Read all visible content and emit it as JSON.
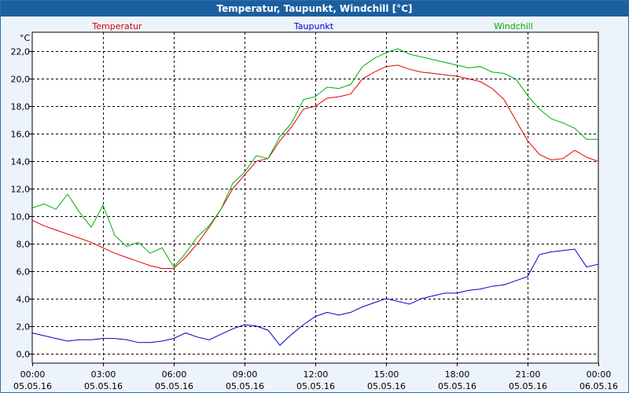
{
  "window": {
    "title": "Temperatur, Taupunkt, Windchill [°C]"
  },
  "colors": {
    "titlebar_bg": "#1b5f9f",
    "background": "#ecf3fb",
    "plot_bg": "#ffffff",
    "grid": "#000000"
  },
  "chart_data": {
    "type": "line",
    "title": "Temperatur, Taupunkt, Windchill [°C]",
    "ylabel": "°C",
    "xlabel": "",
    "ylim": [
      -0.7,
      23.4
    ],
    "yticks": [
      0,
      2,
      4,
      6,
      8,
      10,
      12,
      14,
      16,
      18,
      20,
      22
    ],
    "ytick_labels": [
      "0,0",
      "2,0",
      "4,0",
      "6,0",
      "8,0",
      "10,0",
      "12,0",
      "14,0",
      "16,0",
      "18,0",
      "20,0",
      "22,0"
    ],
    "xlim": [
      "05.05.16 00:00",
      "06.05.16 00:00"
    ],
    "xticks": [
      {
        "time": "00:00",
        "date": "05.05.16"
      },
      {
        "time": "03:00",
        "date": "05.05.16"
      },
      {
        "time": "06:00",
        "date": "05.05.16"
      },
      {
        "time": "09:00",
        "date": "05.05.16"
      },
      {
        "time": "12:00",
        "date": "05.05.16"
      },
      {
        "time": "15:00",
        "date": "05.05.16"
      },
      {
        "time": "18:00",
        "date": "05.05.16"
      },
      {
        "time": "21:00",
        "date": "05.05.16"
      },
      {
        "time": "00:00",
        "date": "06.05.16"
      }
    ],
    "grid": true,
    "legend_position": "top",
    "series": [
      {
        "name": "Temperatur",
        "color": "#e00000",
        "x": [
          "00:00",
          "00:30",
          "01:00",
          "01:30",
          "02:00",
          "02:30",
          "03:00",
          "03:30",
          "04:00",
          "04:30",
          "05:00",
          "05:30",
          "06:00",
          "06:30",
          "07:00",
          "07:30",
          "08:00",
          "08:30",
          "09:00",
          "09:30",
          "10:00",
          "10:30",
          "11:00",
          "11:30",
          "12:00",
          "12:30",
          "13:00",
          "13:30",
          "14:00",
          "14:30",
          "15:00",
          "15:30",
          "16:00",
          "16:30",
          "17:00",
          "17:30",
          "18:00",
          "18:30",
          "19:00",
          "19:30",
          "20:00",
          "20:30",
          "21:00",
          "21:30",
          "22:00",
          "22:30",
          "23:00",
          "23:30",
          "23:59"
        ],
        "values": [
          9.7,
          9.3,
          9.0,
          8.7,
          8.4,
          8.1,
          7.7,
          7.3,
          7.0,
          6.7,
          6.4,
          6.2,
          6.2,
          7.0,
          8.0,
          9.2,
          10.5,
          12.0,
          13.0,
          14.0,
          14.2,
          15.5,
          16.5,
          17.8,
          18.0,
          18.6,
          18.7,
          18.9,
          20.0,
          20.5,
          20.9,
          21.0,
          20.7,
          20.5,
          20.4,
          20.3,
          20.2,
          20.0,
          19.8,
          19.3,
          18.5,
          17.0,
          15.5,
          14.5,
          14.1,
          14.2,
          14.8,
          14.3,
          14.0
        ]
      },
      {
        "name": "Taupunkt",
        "color": "#0000cc",
        "x": [
          "00:00",
          "00:30",
          "01:00",
          "01:30",
          "02:00",
          "02:30",
          "03:00",
          "03:30",
          "04:00",
          "04:30",
          "05:00",
          "05:30",
          "06:00",
          "06:30",
          "07:00",
          "07:30",
          "08:00",
          "08:30",
          "09:00",
          "09:30",
          "10:00",
          "10:30",
          "11:00",
          "11:30",
          "12:00",
          "12:30",
          "13:00",
          "13:30",
          "14:00",
          "14:30",
          "15:00",
          "15:30",
          "16:00",
          "16:30",
          "17:00",
          "17:30",
          "18:00",
          "18:30",
          "19:00",
          "19:30",
          "20:00",
          "20:30",
          "21:00",
          "21:30",
          "22:00",
          "22:30",
          "23:00",
          "23:30",
          "23:59"
        ],
        "values": [
          1.5,
          1.3,
          1.1,
          0.9,
          1.0,
          1.0,
          1.1,
          1.1,
          1.0,
          0.8,
          0.8,
          0.9,
          1.1,
          1.5,
          1.2,
          1.0,
          1.4,
          1.8,
          2.1,
          2.0,
          1.7,
          0.6,
          1.4,
          2.1,
          2.7,
          3.0,
          2.8,
          3.0,
          3.4,
          3.7,
          4.0,
          3.8,
          3.6,
          4.0,
          4.2,
          4.4,
          4.4,
          4.6,
          4.7,
          4.9,
          5.0,
          5.3,
          5.6,
          7.2,
          7.4,
          7.5,
          7.6,
          6.3,
          6.5
        ]
      },
      {
        "name": "Windchill",
        "color": "#00b000",
        "x": [
          "00:00",
          "00:30",
          "01:00",
          "01:30",
          "02:00",
          "02:30",
          "03:00",
          "03:30",
          "04:00",
          "04:30",
          "05:00",
          "05:30",
          "06:00",
          "06:30",
          "07:00",
          "07:30",
          "08:00",
          "08:30",
          "09:00",
          "09:30",
          "10:00",
          "10:30",
          "11:00",
          "11:30",
          "12:00",
          "12:30",
          "13:00",
          "13:30",
          "14:00",
          "14:30",
          "15:00",
          "15:30",
          "16:00",
          "16:30",
          "17:00",
          "17:30",
          "18:00",
          "18:30",
          "19:00",
          "19:30",
          "20:00",
          "20:30",
          "21:00",
          "21:30",
          "22:00",
          "22:30",
          "23:00",
          "23:30",
          "23:59"
        ],
        "values": [
          10.6,
          10.9,
          10.5,
          11.6,
          10.3,
          9.2,
          10.8,
          8.6,
          7.8,
          8.1,
          7.3,
          7.7,
          6.3,
          7.3,
          8.5,
          9.3,
          10.5,
          12.4,
          13.2,
          14.4,
          14.2,
          15.8,
          16.8,
          18.5,
          18.7,
          19.4,
          19.3,
          19.6,
          20.9,
          21.5,
          21.9,
          22.2,
          21.8,
          21.6,
          21.4,
          21.2,
          21.0,
          20.8,
          20.9,
          20.5,
          20.4,
          20.0,
          18.8,
          17.8,
          17.1,
          16.8,
          16.4,
          15.6,
          15.6
        ]
      }
    ]
  }
}
